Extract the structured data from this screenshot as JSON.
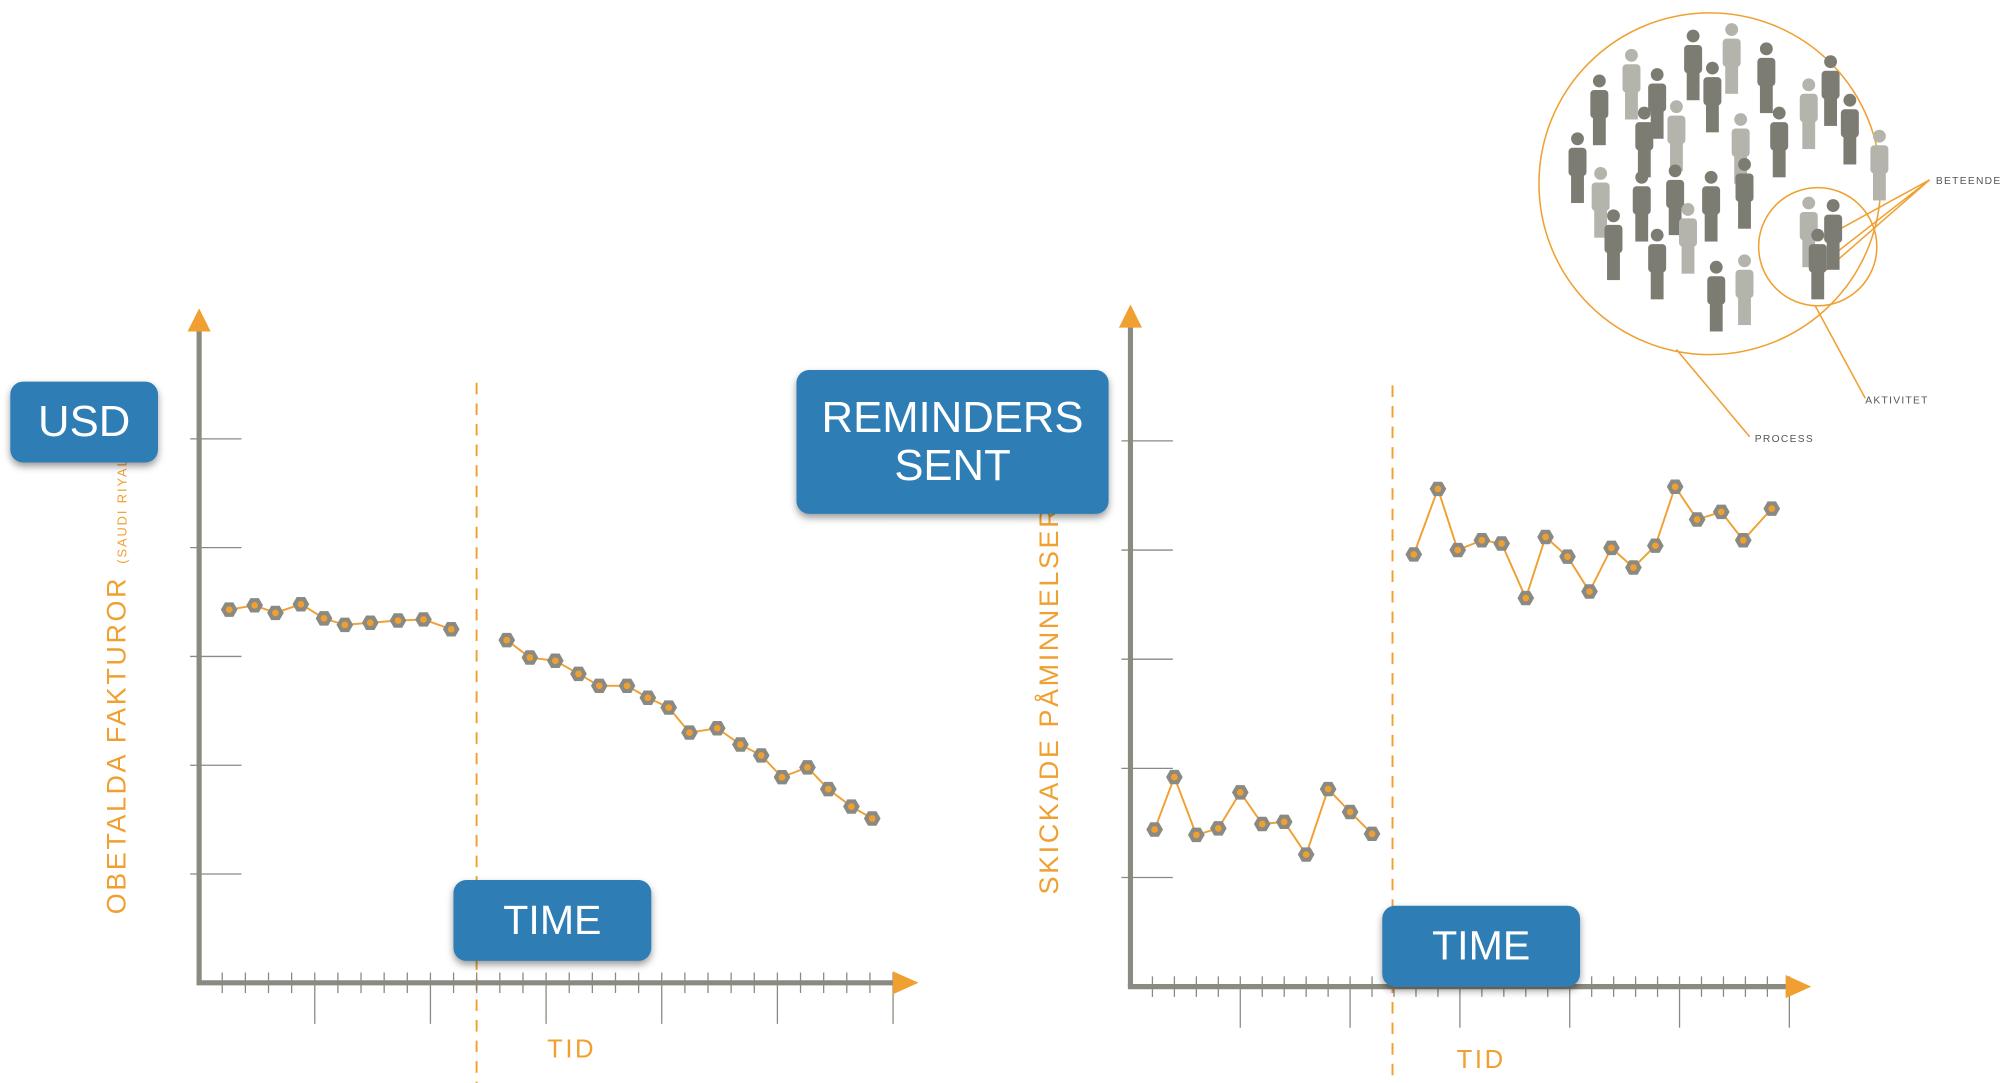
{
  "chart_data": [
    {
      "type": "line",
      "y_label": "OBETALDA FAKTUROR",
      "y_label_note": "(SAUDI RIYAL)",
      "x_label": "TID",
      "callouts": [
        {
          "lines": [
            "USD"
          ]
        },
        {
          "lines": [
            "TIME"
          ]
        }
      ],
      "x": [
        1.3,
        2.4,
        3.3,
        4.4,
        5.4,
        6.3,
        7.4,
        8.6,
        9.7,
        10.9,
        12.1,
        13.3,
        14.3,
        15.4,
        16.4,
        17.3,
        18.5,
        19.4,
        20.3,
        21.2,
        22.4,
        23.4,
        24.3,
        25.2,
        26.3,
        27.2,
        28.2,
        29.1
      ],
      "values": [
        3.43,
        3.47,
        3.4,
        3.48,
        3.35,
        3.29,
        3.31,
        3.33,
        3.34,
        3.25,
        null,
        3.15,
        2.99,
        2.96,
        2.84,
        2.73,
        2.73,
        2.62,
        2.53,
        2.3,
        2.34,
        2.19,
        2.09,
        1.89,
        1.98,
        1.78,
        1.62,
        1.51
      ],
      "color": "#f0a030",
      "marker_color": "#8a8a82",
      "xlim": [
        0,
        31.1
      ],
      "ylim": [
        0,
        6.2
      ],
      "xticks": [
        1,
        2,
        3,
        4,
        5,
        6,
        7,
        8,
        9,
        10,
        11,
        12,
        13,
        14,
        15,
        16,
        17,
        18,
        19,
        20,
        21,
        22,
        23,
        24,
        25,
        26,
        27,
        28,
        29,
        30
      ],
      "yticks": [
        1,
        2,
        3,
        4,
        5
      ]
    },
    {
      "type": "line",
      "y_label": "SKICKADE PÅMINNELSER",
      "x_label": "TID",
      "callouts": [
        {
          "lines": [
            "REMINDERS",
            "SENT"
          ]
        },
        {
          "lines": [
            "TIME"
          ]
        }
      ],
      "x": [
        1.1,
        2.0,
        3.0,
        4.0,
        5.0,
        6.0,
        7.0,
        8.0,
        9.0,
        10.0,
        11.0,
        12.0,
        12.9,
        14.0,
        14.9,
        16.0,
        16.9,
        18.0,
        18.9,
        19.9,
        20.9,
        21.9,
        22.9,
        23.9,
        24.8,
        25.8,
        26.9,
        27.9,
        29.2
      ],
      "values": [
        1.44,
        1.92,
        1.39,
        1.45,
        1.78,
        1.49,
        1.51,
        1.21,
        1.81,
        1.6,
        1.4,
        null,
        3.96,
        4.56,
        4.0,
        4.09,
        4.06,
        3.56,
        4.12,
        3.94,
        3.62,
        4.02,
        3.84,
        4.04,
        4.58,
        4.28,
        4.35,
        4.09,
        4.38
      ],
      "color": "#f0a030",
      "marker_color": "#8a8a82",
      "xlim": [
        0,
        31
      ],
      "ylim": [
        0,
        6.25
      ],
      "xticks": [
        1,
        2,
        3,
        4,
        5,
        6,
        7,
        8,
        9,
        10,
        11,
        12,
        13,
        14,
        15,
        16,
        17,
        18,
        19,
        20,
        21,
        22,
        23,
        24,
        25,
        26,
        27,
        28,
        29,
        30
      ],
      "yticks": [
        1,
        2,
        3,
        4,
        5
      ]
    }
  ],
  "diagram": {
    "labels": [
      "BETEENDE",
      "AKTIVITET",
      "PROCESS"
    ]
  }
}
